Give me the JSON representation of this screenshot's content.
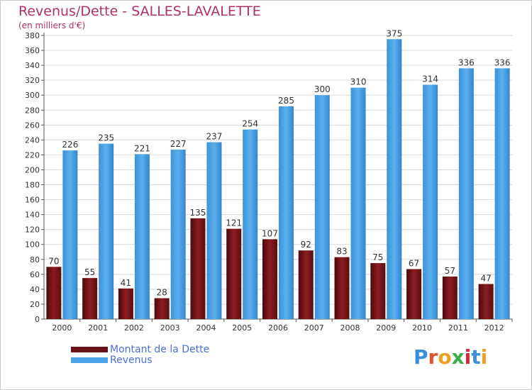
{
  "title": "Revenus/Dette - SALLES-LAVALETTE",
  "subtitle": "(en milliers d'€)",
  "logo": {
    "text": "Proxiti"
  },
  "colors": {
    "debt": "#7a1418",
    "revenue": "#4aa3e6",
    "grid": "#d9d9d9",
    "title": "#b0306a",
    "legend_text": "#4a6fd8"
  },
  "chart_data": {
    "type": "bar",
    "categories": [
      "2000",
      "2001",
      "2002",
      "2003",
      "2004",
      "2005",
      "2006",
      "2007",
      "2008",
      "2009",
      "2010",
      "2011",
      "2012"
    ],
    "series": [
      {
        "name": "Montant de la Dette",
        "values": [
          70,
          55,
          41,
          28,
          135,
          121,
          107,
          92,
          83,
          75,
          67,
          57,
          47
        ]
      },
      {
        "name": "Revenus",
        "values": [
          226,
          235,
          221,
          227,
          237,
          254,
          285,
          300,
          310,
          375,
          314,
          336,
          336
        ]
      }
    ],
    "ylim": [
      0,
      380
    ],
    "ytick_step": 20,
    "grid": true,
    "legend": "bottom-left"
  }
}
